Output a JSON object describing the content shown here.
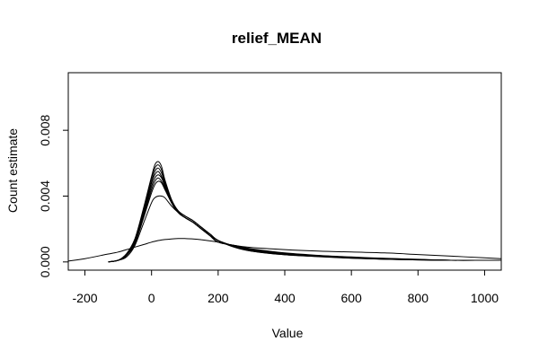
{
  "chart_data": {
    "type": "line",
    "title": "relief_MEAN",
    "xlabel": "Value",
    "ylabel": "Count estimate",
    "xlim": [
      -250,
      1050
    ],
    "ylim": [
      -0.0005,
      0.0115
    ],
    "x_ticks": [
      -200,
      0,
      200,
      400,
      600,
      800,
      1000
    ],
    "x_tick_labels": [
      "-200",
      "0",
      "200",
      "400",
      "600",
      "800",
      "1000"
    ],
    "y_ticks": [
      0.0,
      0.004,
      0.008
    ],
    "y_tick_labels": [
      "0.000",
      "0.004",
      "0.008"
    ],
    "grid": false,
    "legend": "none",
    "line_color": "#000000",
    "x": [
      -250,
      -200,
      -150,
      -130,
      -100,
      -75,
      -50,
      -25,
      0,
      10,
      20,
      30,
      40,
      60,
      80,
      100,
      125,
      150,
      175,
      200,
      250,
      300,
      400,
      500,
      600,
      700,
      800,
      900,
      1000,
      1050
    ],
    "series": [
      {
        "values": [
          null,
          null,
          null,
          0.0,
          0.0001,
          0.0005,
          0.0014,
          0.0032,
          0.0052,
          0.0059,
          0.0061,
          0.0058,
          0.005,
          0.0038,
          0.0031,
          0.0028,
          0.0025,
          0.0021,
          0.0017,
          0.0013,
          0.00088,
          0.00065,
          0.00043,
          0.00032,
          0.00022,
          0.00016,
          0.00012,
          0.0001,
          0.0001,
          0.0001
        ]
      },
      {
        "values": [
          null,
          null,
          null,
          0.0,
          0.0001,
          0.0005,
          0.0014,
          0.0031,
          0.0051,
          0.0057,
          0.0059,
          0.0056,
          0.0049,
          0.0037,
          0.0031,
          0.0028,
          0.0025,
          0.0021,
          0.0017,
          0.0013,
          0.0009,
          0.00066,
          0.00044,
          0.00033,
          0.00023,
          0.00017,
          0.00012,
          0.0001,
          0.0001,
          0.0001
        ]
      },
      {
        "values": [
          null,
          null,
          null,
          0.0,
          0.0001,
          0.0004,
          0.0013,
          0.003,
          0.0049,
          0.0055,
          0.0057,
          0.0054,
          0.0048,
          0.0037,
          0.0031,
          0.0028,
          0.0025,
          0.0021,
          0.0017,
          0.0013,
          0.00092,
          0.00068,
          0.00045,
          0.00034,
          0.00024,
          0.00017,
          0.00013,
          0.0001,
          0.0001,
          0.0001
        ]
      },
      {
        "values": [
          null,
          null,
          null,
          0.0,
          0.0001,
          0.0004,
          0.0013,
          0.0029,
          0.0048,
          0.0053,
          0.0055,
          0.0052,
          0.0047,
          0.0036,
          0.003,
          0.0027,
          0.0024,
          0.002,
          0.0017,
          0.0013,
          0.00094,
          0.0007,
          0.00046,
          0.00035,
          0.00025,
          0.00018,
          0.00013,
          0.0001,
          0.0001,
          0.0001
        ]
      },
      {
        "values": [
          null,
          null,
          null,
          0.0,
          0.0001,
          0.0004,
          0.0012,
          0.0028,
          0.0046,
          0.0051,
          0.0053,
          0.0051,
          0.0046,
          0.0036,
          0.003,
          0.0027,
          0.0024,
          0.002,
          0.0016,
          0.0013,
          0.00096,
          0.00072,
          0.00048,
          0.00036,
          0.00026,
          0.00019,
          0.00014,
          0.0001,
          0.0001,
          0.0001
        ]
      },
      {
        "values": [
          null,
          null,
          null,
          0.0,
          0.0001,
          0.0004,
          0.0012,
          0.0027,
          0.0044,
          0.0049,
          0.0051,
          0.0049,
          0.0045,
          0.0036,
          0.003,
          0.0027,
          0.0024,
          0.002,
          0.0016,
          0.0012,
          0.00098,
          0.00074,
          0.0005,
          0.00037,
          0.00027,
          0.0002,
          0.00014,
          0.0001,
          0.0001,
          0.0001
        ]
      },
      {
        "values": [
          null,
          null,
          null,
          0.0,
          0.0001,
          0.0004,
          0.0011,
          0.0026,
          0.0042,
          0.0047,
          0.0049,
          0.0048,
          0.0044,
          0.0036,
          0.003,
          0.0027,
          0.0024,
          0.002,
          0.0016,
          0.0012,
          0.001,
          0.00076,
          0.00052,
          0.00038,
          0.00028,
          0.00021,
          0.00015,
          0.0001,
          0.0001,
          0.0001
        ]
      },
      {
        "values": [
          null,
          null,
          null,
          0.0,
          0.0001,
          0.0003,
          0.001,
          0.0023,
          0.0036,
          0.0039,
          0.004,
          0.004,
          0.0039,
          0.0034,
          0.003,
          0.0027,
          0.0024,
          0.002,
          0.0016,
          0.0012,
          0.001,
          0.0008,
          0.00055,
          0.0004,
          0.0003,
          0.00022,
          0.00016,
          0.0001,
          0.0001,
          0.0001
        ]
      },
      {
        "values": [
          5e-05,
          0.0002,
          0.0004,
          0.00048,
          0.0006,
          0.00075,
          0.0009,
          0.00105,
          0.0012,
          0.00125,
          0.0013,
          0.00133,
          0.00136,
          0.0014,
          0.00142,
          0.00142,
          0.0014,
          0.00135,
          0.00128,
          0.0012,
          0.001,
          0.00088,
          0.00075,
          0.00066,
          0.0006,
          0.00055,
          0.00045,
          0.00035,
          0.00025,
          0.0002
        ]
      }
    ]
  }
}
